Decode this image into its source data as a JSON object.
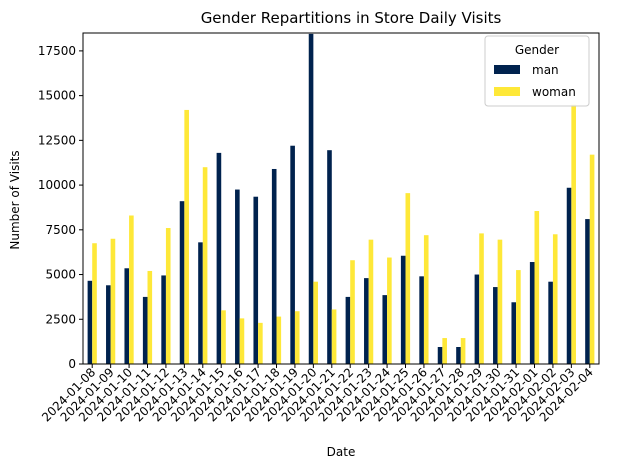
{
  "chart_data": {
    "type": "bar",
    "title": "Gender Repartitions in Store Daily Visits",
    "xlabel": "Date",
    "ylabel": "Number of Visits",
    "ylim": [
      0,
      18500
    ],
    "yticks": [
      0,
      2500,
      5000,
      7500,
      10000,
      12500,
      15000,
      17500
    ],
    "ytick_labels": [
      "0",
      "2500",
      "5000",
      "7500",
      "10000",
      "12500",
      "15000",
      "17500"
    ],
    "grid": false,
    "legend": {
      "title": "Gender",
      "placement": "top-right"
    },
    "categories": [
      "2024-01-08",
      "2024-01-09",
      "2024-01-10",
      "2024-01-11",
      "2024-01-12",
      "2024-01-13",
      "2024-01-14",
      "2024-01-15",
      "2024-01-16",
      "2024-01-17",
      "2024-01-18",
      "2024-01-19",
      "2024-01-20",
      "2024-01-21",
      "2024-01-22",
      "2024-01-23",
      "2024-01-24",
      "2024-01-25",
      "2024-01-26",
      "2024-01-27",
      "2024-01-28",
      "2024-01-29",
      "2024-01-30",
      "2024-01-31",
      "2024-02-01",
      "2024-02-02",
      "2024-02-03",
      "2024-02-04"
    ],
    "series": [
      {
        "name": "man",
        "color": "#00224e",
        "values": [
          4650,
          4400,
          5350,
          3750,
          4950,
          9100,
          6800,
          11800,
          9750,
          9350,
          10900,
          12200,
          18450,
          11950,
          3750,
          4800,
          3850,
          6050,
          4900,
          950,
          950,
          5000,
          4300,
          3450,
          5700,
          4600,
          9850,
          8100
        ]
      },
      {
        "name": "woman",
        "color": "#fee838",
        "values": [
          6750,
          7000,
          8300,
          5200,
          7600,
          14200,
          11000,
          3000,
          2550,
          2300,
          2650,
          2950,
          4600,
          3050,
          5800,
          6950,
          5950,
          9550,
          7200,
          1450,
          1450,
          7300,
          6950,
          5250,
          8550,
          7250,
          14500,
          11700
        ]
      }
    ]
  }
}
